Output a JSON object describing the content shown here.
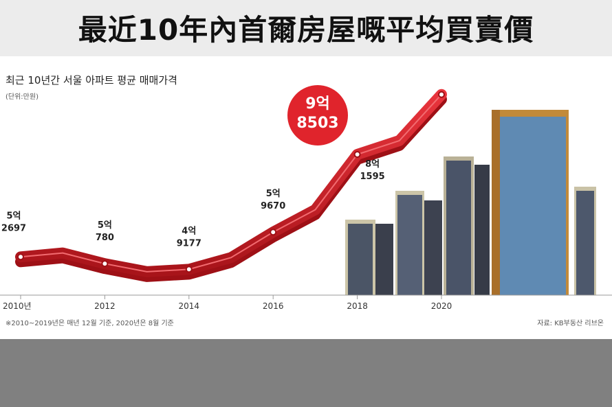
{
  "banner": {
    "title": "最近10年內首爾房屋嘅平均買賣價"
  },
  "chart_data": {
    "type": "line",
    "title": "최근 10년간 서울 아파트 평균 매매가격",
    "unit": "(단위:만원)",
    "x": [
      2010,
      2011,
      2012,
      2013,
      2014,
      2015,
      2016,
      2017,
      2018,
      2019,
      2020
    ],
    "values": [
      52697,
      53800,
      50780,
      48500,
      49177,
      52500,
      59670,
      66000,
      81595,
      85500,
      98503
    ],
    "xticks": [
      "2010년",
      "2012",
      "2014",
      "2016",
      "2018",
      "2020"
    ],
    "annotations": [
      {
        "x": 2010,
        "line1": "5억",
        "line2": "2697"
      },
      {
        "x": 2012,
        "line1": "5억",
        "line2": "780"
      },
      {
        "x": 2014,
        "line1": "4억",
        "line2": "9177"
      },
      {
        "x": 2016,
        "line1": "5억",
        "line2": "9670"
      },
      {
        "x": 2018,
        "line1": "8억",
        "line2": "1595"
      },
      {
        "x": 2020,
        "line1": "9억",
        "line2": "8503",
        "highlight": true
      }
    ],
    "footnote": "※2010~2019년은 매년 12월 기준, 2020년은 8월 기준",
    "source": "자료: KB부동산 리브온",
    "colors": {
      "line": "#d8202a",
      "line_dark": "#9e1016",
      "highlight": "#e0242c"
    }
  }
}
